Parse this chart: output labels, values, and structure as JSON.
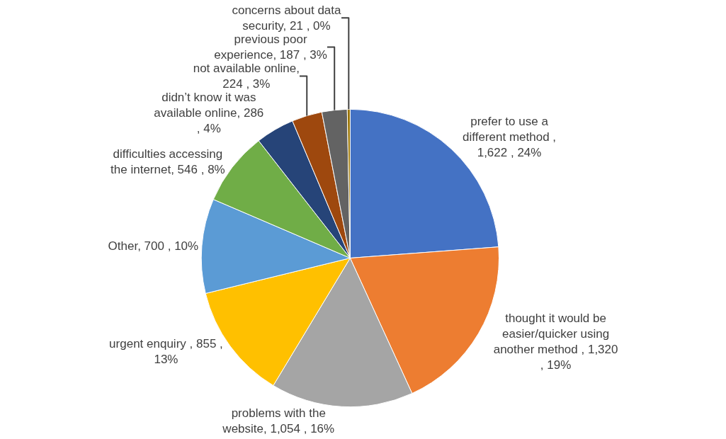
{
  "chart_data": {
    "type": "pie",
    "categories": [
      "prefer to use a different method",
      "thought it would be easier/quicker using another method",
      "problems with the website",
      "urgent enquiry",
      "Other",
      "difficulties accessing the internet",
      "didn’t know it was available online",
      "not available online",
      "previous poor experience",
      "concerns about data security"
    ],
    "values": [
      1622,
      1320,
      1054,
      855,
      700,
      546,
      286,
      224,
      187,
      21
    ],
    "value_labels": [
      " , 1,622 , 24%",
      " , 1,320 , 19%",
      ", 1,054 , 16%",
      " , 855 , 13%",
      ", 700 , 10%",
      ", 546 , 8%",
      ", 286 , 4%",
      ", 224 , 3%",
      ", 187 , 3%",
      ", 21 , 0%"
    ],
    "colors": [
      "#4472c4",
      "#ed7d31",
      "#a5a5a5",
      "#ffc000",
      "#5b9bd5",
      "#70ad47",
      "#264478",
      "#9e480e",
      "#636363",
      "#997300"
    ],
    "legend": false
  }
}
